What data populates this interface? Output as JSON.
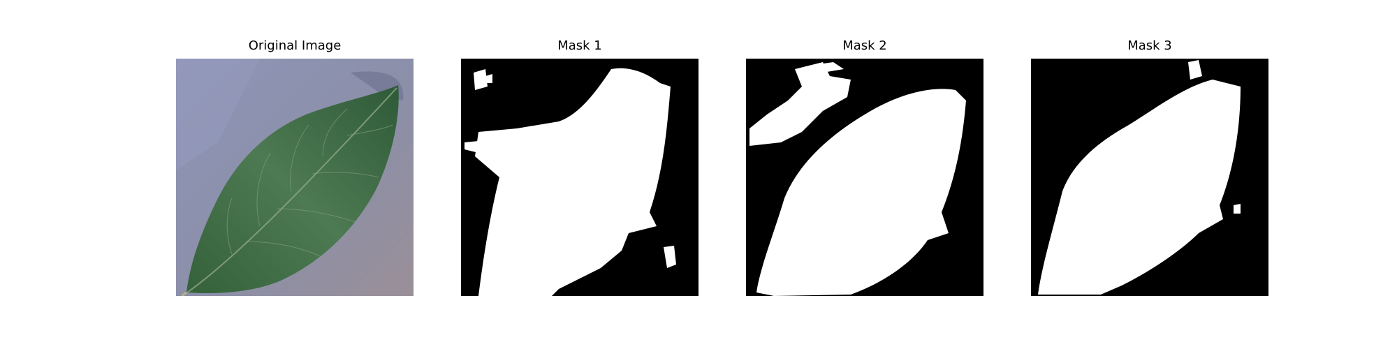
{
  "figure": {
    "panels": [
      {
        "title": "Original Image",
        "content": "photo of a green leaf on a grey-blue textured background"
      },
      {
        "title": "Mask 1",
        "content": "binary segmentation mask"
      },
      {
        "title": "Mask 2",
        "content": "binary segmentation mask"
      },
      {
        "title": "Mask 3",
        "content": "binary segmentation mask"
      }
    ],
    "colors": {
      "mask_fg": "#ffffff",
      "mask_bg": "#000000",
      "leaf": "#3f6e45",
      "background": "#8d92ad"
    }
  }
}
